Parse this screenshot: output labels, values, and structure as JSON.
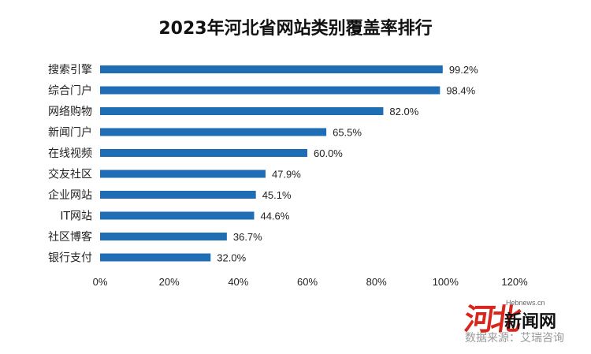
{
  "chart_data": {
    "type": "bar",
    "orientation": "horizontal",
    "title": "2023年河北省网站类别覆盖率排行",
    "categories": [
      "搜索引擎",
      "综合门户",
      "网络购物",
      "新闻门户",
      "在线视频",
      "交友社区",
      "企业网站",
      "IT网站",
      "社区博客",
      "银行支付"
    ],
    "values": [
      99.2,
      98.4,
      82.0,
      65.5,
      60.0,
      47.9,
      45.1,
      44.6,
      36.7,
      32.0
    ],
    "data_labels": [
      "99.2%",
      "98.4%",
      "82.0%",
      "65.5%",
      "60.0%",
      "47.9%",
      "45.1%",
      "44.6%",
      "36.7%",
      "32.0%"
    ],
    "x_ticks": [
      "0%",
      "20%",
      "40%",
      "60%",
      "80%",
      "100%",
      "120%"
    ],
    "xlim": [
      0,
      120
    ],
    "grid": false,
    "bar_color": "#1f6db4"
  },
  "watermark": {
    "logo": "河北",
    "domain": "Hebnews.cn",
    "site_name": "新闻网",
    "source": "数据来源：艾瑞咨询"
  }
}
